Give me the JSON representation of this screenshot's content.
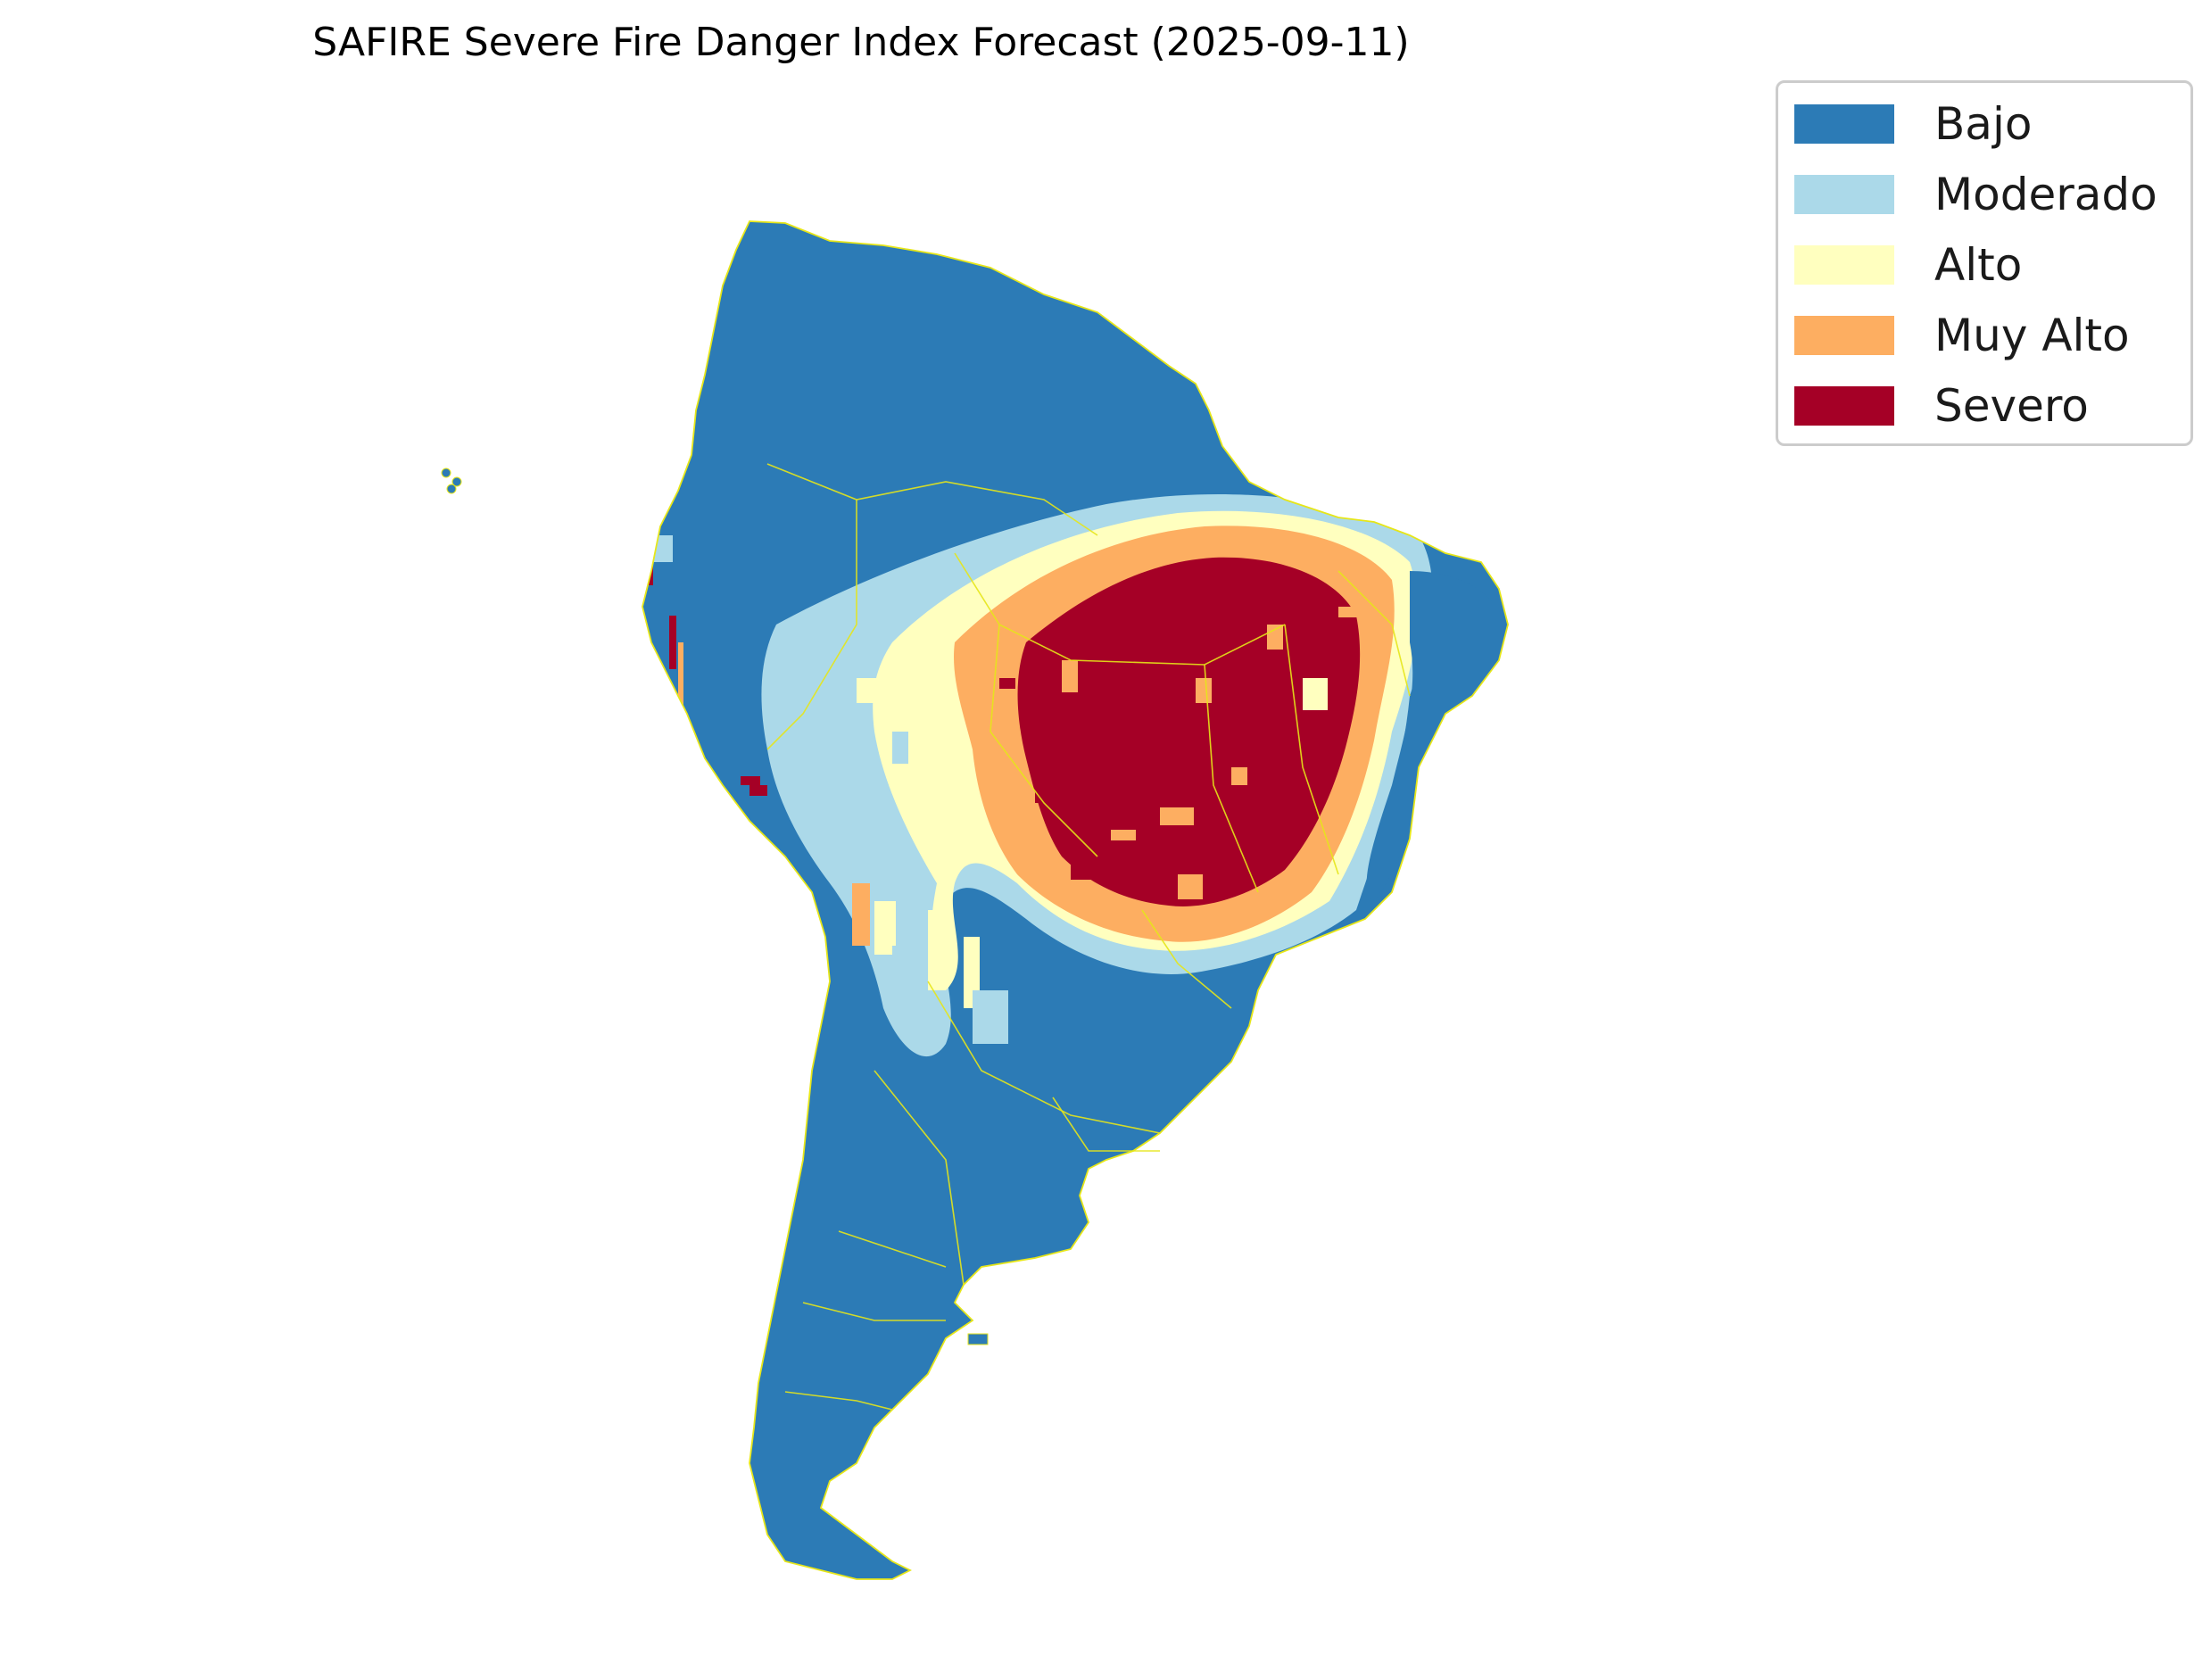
{
  "title": "SAFIRE Severe Fire Danger Index Forecast (2025-09-11)",
  "legend": {
    "items": [
      {
        "label": "Bajo",
        "color": "#2c7bb6"
      },
      {
        "label": "Moderado",
        "color": "#abd9e9"
      },
      {
        "label": "Alto",
        "color": "#ffffbf"
      },
      {
        "label": "Muy Alto",
        "color": "#fdae61"
      },
      {
        "label": "Severo",
        "color": "#a50026"
      }
    ]
  },
  "map": {
    "region": "South America",
    "boundary_color": "#e6e619",
    "dominant_category": "Bajo",
    "hotspot_category": "Severo"
  }
}
